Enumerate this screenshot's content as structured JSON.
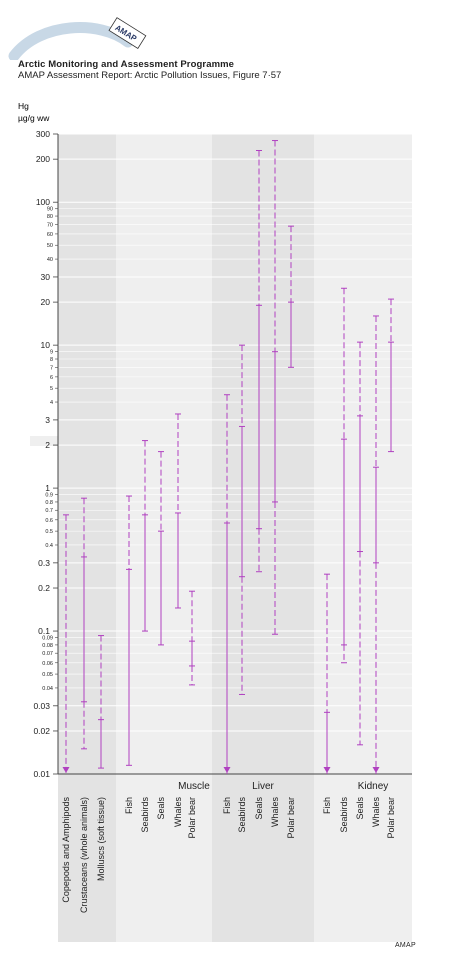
{
  "header": {
    "logo_text": "AMAP",
    "title": "Arctic Monitoring and Assessment Programme",
    "subtitle": "AMAP Assessment Report: Arctic Pollution Issues, Figure 7·57"
  },
  "footer": {
    "credit": "AMAP"
  },
  "colors": {
    "band_dark": "#e3e3e3",
    "band_light": "#efefef",
    "series": "#b040c0",
    "axis": "#444444"
  },
  "chart_data": {
    "type": "range",
    "ylabel_line1": "Hg",
    "ylabel_line2": "µg/g ww",
    "yscale": "log",
    "ylim": [
      0.01,
      300
    ],
    "yticks_major": [
      {
        "v": 0.01,
        "label": "0.01"
      },
      {
        "v": 0.02,
        "label": "0.02"
      },
      {
        "v": 0.03,
        "label": "0.03"
      },
      {
        "v": 0.1,
        "label": "0.1"
      },
      {
        "v": 0.2,
        "label": "0.2"
      },
      {
        "v": 0.3,
        "label": "0.3"
      },
      {
        "v": 1,
        "label": "1"
      },
      {
        "v": 2,
        "label": "2"
      },
      {
        "v": 3,
        "label": "3"
      },
      {
        "v": 10,
        "label": "10"
      },
      {
        "v": 20,
        "label": "20"
      },
      {
        "v": 30,
        "label": "30"
      },
      {
        "v": 100,
        "label": "100"
      },
      {
        "v": 200,
        "label": "200"
      },
      {
        "v": 300,
        "label": "300"
      }
    ],
    "yticks_minor": [
      {
        "v": 0.04,
        "label": "0.04"
      },
      {
        "v": 0.05,
        "label": "0.05"
      },
      {
        "v": 0.06,
        "label": "0.06"
      },
      {
        "v": 0.07,
        "label": "0.07"
      },
      {
        "v": 0.08,
        "label": "0.08"
      },
      {
        "v": 0.09,
        "label": "0.09"
      },
      {
        "v": 0.4,
        "label": "0.4"
      },
      {
        "v": 0.5,
        "label": "0.5"
      },
      {
        "v": 0.6,
        "label": "0.6"
      },
      {
        "v": 0.7,
        "label": "0.7"
      },
      {
        "v": 0.8,
        "label": "0.8"
      },
      {
        "v": 0.9,
        "label": "0.9"
      },
      {
        "v": 4,
        "label": "4"
      },
      {
        "v": 5,
        "label": "5"
      },
      {
        "v": 6,
        "label": "6"
      },
      {
        "v": 7,
        "label": "7"
      },
      {
        "v": 8,
        "label": "8"
      },
      {
        "v": 9,
        "label": "9"
      },
      {
        "v": 40,
        "label": "40"
      },
      {
        "v": 50,
        "label": "50"
      },
      {
        "v": 60,
        "label": "60"
      },
      {
        "v": 70,
        "label": "70"
      },
      {
        "v": 80,
        "label": "80"
      },
      {
        "v": 90,
        "label": "90"
      }
    ],
    "groups": [
      {
        "label": "",
        "shade": "dark",
        "items": [
          {
            "label": "Copepods and Amphipods",
            "max": 0.65,
            "median": null,
            "min": 0.01,
            "arrow": true
          },
          {
            "label": "Crustaceans (whole animals)",
            "max": 0.85,
            "median": 0.33,
            "min": 0.015,
            "p": 0.032,
            "arrow": false
          },
          {
            "label": "Molluscs (soft tissue)",
            "max": 0.093,
            "median": 0.024,
            "min": 0.011,
            "arrow": false
          }
        ]
      },
      {
        "label": "Muscle",
        "shade": "light",
        "items": [
          {
            "label": "Fish",
            "max": 0.88,
            "median": 0.27,
            "min": 0.0115,
            "arrow": false
          },
          {
            "label": "Seabirds",
            "max": 2.15,
            "median": 0.65,
            "min": 0.1,
            "arrow": false
          },
          {
            "label": "Seals",
            "max": 1.8,
            "median": 0.5,
            "min": 0.08,
            "arrow": false
          },
          {
            "label": "Whales",
            "max": 3.3,
            "median": 0.67,
            "min": 0.145,
            "arrow": false
          },
          {
            "label": "Polar bear",
            "max": 0.19,
            "median": 0.085,
            "min": 0.042,
            "p": 0.057,
            "arrow": false
          }
        ]
      },
      {
        "label": "Liver",
        "shade": "dark",
        "items": [
          {
            "label": "Fish",
            "max": 4.5,
            "median": 0.57,
            "min": 0.01,
            "arrow": true
          },
          {
            "label": "Seabirds",
            "max": 10,
            "median": 2.7,
            "min": 0.036,
            "p": 0.24,
            "arrow": false
          },
          {
            "label": "Seals",
            "max": 230,
            "median": 19,
            "min": 0.26,
            "p": 0.52,
            "arrow": false
          },
          {
            "label": "Whales",
            "max": 270,
            "median": 9,
            "min": 0.095,
            "p": 0.8,
            "arrow": false
          },
          {
            "label": "Polar bear",
            "max": 68,
            "median": 20,
            "min": 7,
            "arrow": false
          }
        ]
      },
      {
        "label": "Kidney",
        "shade": "light",
        "items": [
          {
            "label": "Fish",
            "max": 0.25,
            "median": 0.027,
            "min": 0.01,
            "arrow": true
          },
          {
            "label": "Seabirds",
            "max": 25,
            "median": 2.2,
            "min": 0.06,
            "p": 0.08,
            "arrow": false
          },
          {
            "label": "Seals",
            "max": 10.5,
            "median": 3.2,
            "min": 0.016,
            "p": 0.36,
            "arrow": false
          },
          {
            "label": "Whales",
            "max": 16,
            "median": 1.4,
            "min": 0.01,
            "p": 0.3,
            "arrow": true
          },
          {
            "label": "Polar bear",
            "max": 21,
            "median": 10.5,
            "min": 1.8,
            "arrow": false
          }
        ]
      }
    ]
  }
}
